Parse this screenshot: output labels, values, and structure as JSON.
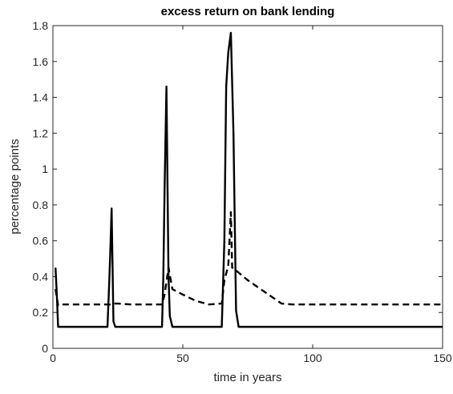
{
  "chart_data": {
    "type": "line",
    "title": "excess return on bank lending",
    "xlabel": "time in years",
    "ylabel": "percentage points",
    "xlim": [
      0,
      150
    ],
    "ylim": [
      0,
      1.8
    ],
    "xticks": [
      0,
      50,
      100,
      150
    ],
    "xtick_labels": [
      "0",
      "50",
      "100",
      "150"
    ],
    "yticks": [
      0,
      0.2,
      0.4,
      0.6,
      0.8,
      1,
      1.2,
      1.4,
      1.6,
      1.8
    ],
    "ytick_labels": [
      "0",
      "0.2",
      "0.4",
      "0.6",
      "0.8",
      "1",
      "1.2",
      "1.4",
      "1.6",
      "1.8"
    ],
    "grid": false,
    "box": true,
    "series": [
      {
        "style": "solid",
        "color": "#000000",
        "x": [
          1,
          1.5,
          2,
          21,
          21.5,
          22,
          22.6,
          23.3,
          24,
          42,
          42.5,
          43,
          43.7,
          44.5,
          45,
          46,
          65,
          66,
          66.7,
          67.5,
          68.5,
          69.5,
          70.5,
          71.5,
          150
        ],
        "y": [
          0.45,
          0.3,
          0.12,
          0.12,
          0.3,
          0.5,
          0.78,
          0.15,
          0.12,
          0.12,
          0.4,
          0.9,
          1.46,
          0.4,
          0.18,
          0.12,
          0.12,
          0.6,
          1.46,
          1.65,
          1.76,
          1.2,
          0.21,
          0.12,
          0.12
        ]
      },
      {
        "style": "dashed",
        "color": "#000000",
        "x": [
          1,
          2,
          3,
          21,
          22,
          23,
          25,
          30,
          42,
          43,
          44.5,
          46,
          50,
          55,
          60,
          65,
          66,
          67.5,
          68.5,
          69,
          70,
          75,
          80,
          85,
          88,
          92,
          100,
          150
        ],
        "y": [
          0.33,
          0.24,
          0.245,
          0.245,
          0.245,
          0.25,
          0.25,
          0.245,
          0.245,
          0.3,
          0.45,
          0.33,
          0.3,
          0.265,
          0.245,
          0.25,
          0.38,
          0.46,
          0.76,
          0.45,
          0.44,
          0.38,
          0.33,
          0.28,
          0.25,
          0.245,
          0.245,
          0.245
        ]
      }
    ]
  }
}
